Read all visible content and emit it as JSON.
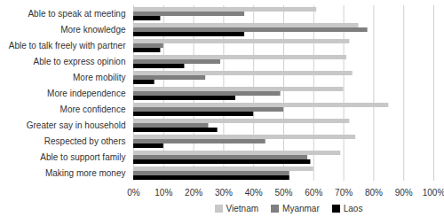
{
  "chart_data": {
    "type": "bar",
    "orientation": "horizontal",
    "categories": [
      "Able to speak at meeting",
      "More knowledge",
      "Able to talk freely with partner",
      "Able to express opinion",
      "More mobility",
      "More independence",
      "More confidence",
      "Greater say in household",
      "Respected by others",
      "Able to support family",
      "Making more money"
    ],
    "series": [
      {
        "name": "Vietnam",
        "color": "#c8c8c8",
        "values": [
          61,
          75,
          72,
          71,
          73,
          70,
          85,
          72,
          74,
          69,
          60
        ]
      },
      {
        "name": "Myanmar",
        "color": "#7f7f7f",
        "values": [
          37,
          78,
          10,
          29,
          24,
          49,
          50,
          25,
          44,
          58,
          52
        ]
      },
      {
        "name": "Laos",
        "color": "#000000",
        "values": [
          9,
          37,
          9,
          17,
          7,
          34,
          40,
          28,
          10,
          59,
          52
        ]
      }
    ],
    "xlim": [
      0,
      100
    ],
    "xticks": [
      {
        "value": 0,
        "label": "0%"
      },
      {
        "value": 10,
        "label": "10%"
      },
      {
        "value": 20,
        "label": "20%"
      },
      {
        "value": 30,
        "label": "30%"
      },
      {
        "value": 40,
        "label": "40%"
      },
      {
        "value": 50,
        "label": "50%"
      },
      {
        "value": 60,
        "label": "60%"
      },
      {
        "value": 70,
        "label": "70%"
      },
      {
        "value": 80,
        "label": "80%"
      },
      {
        "value": 90,
        "label": "90%"
      },
      {
        "value": 100,
        "label": "100%"
      }
    ],
    "grid": true,
    "legend": "bottom"
  }
}
